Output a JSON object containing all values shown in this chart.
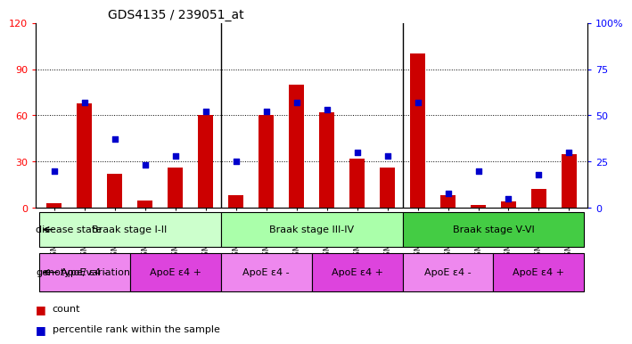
{
  "title": "GDS4135 / 239051_at",
  "samples": [
    "GSM735097",
    "GSM735098",
    "GSM735099",
    "GSM735094",
    "GSM735095",
    "GSM735096",
    "GSM735103",
    "GSM735104",
    "GSM735105",
    "GSM735100",
    "GSM735101",
    "GSM735102",
    "GSM735109",
    "GSM735110",
    "GSM735111",
    "GSM735106",
    "GSM735107",
    "GSM735108"
  ],
  "counts": [
    3,
    68,
    22,
    5,
    26,
    60,
    8,
    60,
    80,
    62,
    32,
    26,
    100,
    8,
    2,
    4,
    12,
    35
  ],
  "percentiles": [
    20,
    57,
    37,
    23,
    28,
    52,
    25,
    52,
    57,
    53,
    30,
    28,
    57,
    8,
    20,
    5,
    18,
    30
  ],
  "bar_color": "#cc0000",
  "dot_color": "#0000cc",
  "ylim_left": [
    0,
    120
  ],
  "ylim_right": [
    0,
    100
  ],
  "yticks_left": [
    0,
    30,
    60,
    90,
    120
  ],
  "yticks_right": [
    0,
    25,
    50,
    75,
    100
  ],
  "ytick_labels_right": [
    "0",
    "25",
    "50",
    "75",
    "100%"
  ],
  "disease_state_groups": [
    {
      "label": "Braak stage I-II",
      "start": 0,
      "end": 6,
      "color": "#ccffcc"
    },
    {
      "label": "Braak stage III-IV",
      "start": 6,
      "end": 12,
      "color": "#aaffaa"
    },
    {
      "label": "Braak stage V-VI",
      "start": 12,
      "end": 18,
      "color": "#44cc44"
    }
  ],
  "genotype_groups": [
    {
      "label": "ApoE ε4 -",
      "start": 0,
      "end": 3,
      "color": "#ee88ee"
    },
    {
      "label": "ApoE ε4 +",
      "start": 3,
      "end": 6,
      "color": "#dd44dd"
    },
    {
      "label": "ApoE ε4 -",
      "start": 6,
      "end": 9,
      "color": "#ee88ee"
    },
    {
      "label": "ApoE ε4 +",
      "start": 9,
      "end": 12,
      "color": "#dd44dd"
    },
    {
      "label": "ApoE ε4 -",
      "start": 12,
      "end": 15,
      "color": "#ee88ee"
    },
    {
      "label": "ApoE ε4 +",
      "start": 15,
      "end": 18,
      "color": "#dd44dd"
    }
  ],
  "label_disease_state": "disease state",
  "label_genotype": "genotype/variation",
  "legend_count": "count",
  "legend_percentile": "percentile rank within the sample",
  "bg_color": "#ffffff",
  "bar_width": 0.5,
  "n_samples": 18,
  "group_separators": [
    6,
    12
  ]
}
